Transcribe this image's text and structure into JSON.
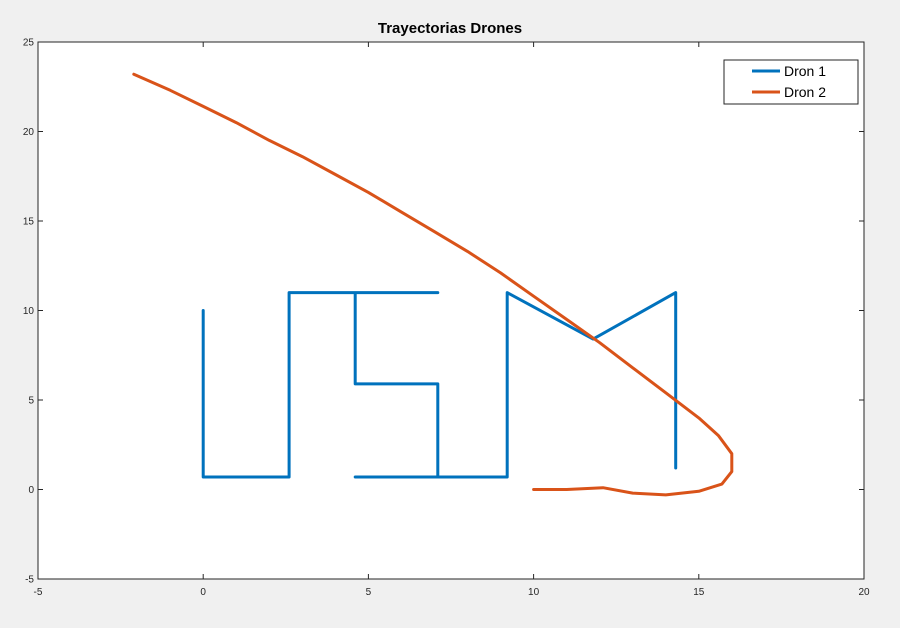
{
  "chart_data": {
    "type": "line",
    "title": "Trayectorias Drones",
    "xlabel": "",
    "ylabel": "",
    "xlim": [
      -5,
      20
    ],
    "ylim": [
      -5,
      25
    ],
    "xticks": [
      -5,
      0,
      5,
      10,
      15,
      20
    ],
    "yticks": [
      -5,
      0,
      5,
      10,
      15,
      20,
      25
    ],
    "xtick_labels": [
      "-5",
      "0",
      "5",
      "10",
      "15",
      "20"
    ],
    "ytick_labels": [
      "-5",
      "0",
      "5",
      "10",
      "15",
      "20",
      "25"
    ],
    "grid": false,
    "legend_position": "top-right",
    "series": [
      {
        "name": "Dron 1",
        "color": "#0072BD",
        "x": [
          0,
          0,
          2.6,
          2.6,
          7.1,
          4.6,
          4.6,
          7.1,
          7.1,
          4.6,
          9.2,
          9.2,
          11.8,
          14.3,
          14.3
        ],
        "y": [
          10,
          0.7,
          0.7,
          11,
          11,
          11,
          5.9,
          5.9,
          0.7,
          0.7,
          0.7,
          11,
          8.4,
          11,
          1.2
        ]
      },
      {
        "name": "Dron 2",
        "color": "#D95319",
        "x": [
          -2.1,
          -1.0,
          0.0,
          1.0,
          2.0,
          3.0,
          4.0,
          5.0,
          6.0,
          7.0,
          8.0,
          9.0,
          10.0,
          11.0,
          12.0,
          13.0,
          14.0,
          15.0,
          15.6,
          16.0,
          16.0,
          15.7,
          15.0,
          14.0,
          13.0,
          12.1,
          11.0,
          10.0
        ],
        "y": [
          23.2,
          22.3,
          21.4,
          20.5,
          19.5,
          18.6,
          17.6,
          16.6,
          15.5,
          14.4,
          13.3,
          12.1,
          10.8,
          9.5,
          8.2,
          6.8,
          5.4,
          4.0,
          3.0,
          2.0,
          1.0,
          0.3,
          -0.1,
          -0.3,
          -0.2,
          0.1,
          0.0,
          0.0
        ]
      }
    ]
  }
}
